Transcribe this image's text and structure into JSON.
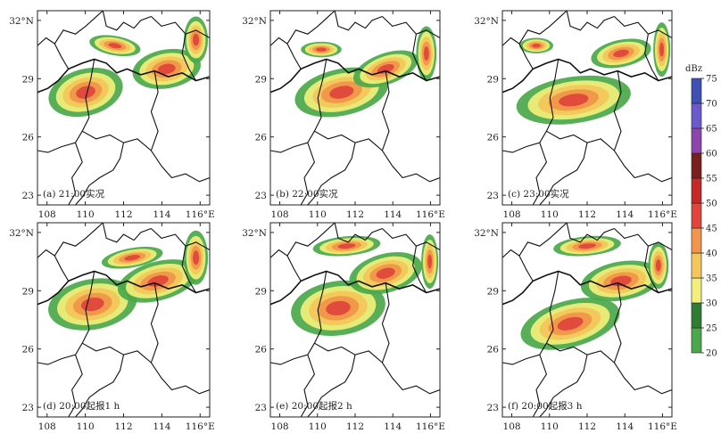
{
  "panels": [
    {
      "label": "(a) 21:00实况"
    },
    {
      "label": "(b) 22:00实况"
    },
    {
      "label": "(c) 23:00实况"
    },
    {
      "label": "(d) 20:00起报1 h"
    },
    {
      "label": "(e) 20:00起报2 h"
    },
    {
      "label": "(f) 20:00起报3 h"
    }
  ],
  "axes": {
    "lon_ticks": [
      "108",
      "110",
      "112",
      "114",
      "116°E"
    ],
    "lat_ticks": [
      "32°N",
      "29",
      "26",
      "23"
    ],
    "lon_range": [
      107.5,
      116.5
    ],
    "lat_range": [
      22.5,
      32.5
    ]
  },
  "colorbar": {
    "title": "dBz",
    "ticks": [
      "20",
      "25",
      "30",
      "35",
      "40",
      "45",
      "50",
      "55",
      "60",
      "65",
      "70",
      "75"
    ],
    "colors": [
      "#4aa84a",
      "#2e7d32",
      "#f2f07a",
      "#f5c65a",
      "#f0954a",
      "#e0443a",
      "#c62828",
      "#7a1e1e",
      "#8e44ad",
      "#6a5acd",
      "#3f51b5"
    ]
  }
}
